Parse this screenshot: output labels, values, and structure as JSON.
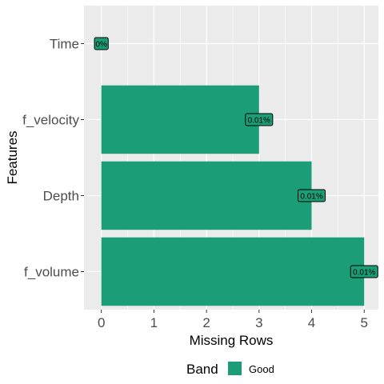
{
  "chart_data": {
    "type": "bar",
    "orientation": "horizontal",
    "xlabel": "Missing Rows",
    "ylabel": "Features",
    "xlim": [
      -0.33,
      5.27
    ],
    "x_ticks": [
      "0",
      "1",
      "2",
      "3",
      "4",
      "5"
    ],
    "grid": true,
    "categories": [
      "Time",
      "f_velocity",
      "Depth",
      "f_volume"
    ],
    "values": [
      0,
      3,
      4,
      5
    ],
    "data_labels": [
      "0%",
      "0.01%",
      "0.01%",
      "0.01%"
    ],
    "legend": {
      "title": "Band",
      "entries": [
        "Good"
      ],
      "position": "bottom"
    },
    "colors": {
      "bar": "#1b9e77",
      "panel": "#ebebeb",
      "grid": "#ffffff"
    }
  }
}
